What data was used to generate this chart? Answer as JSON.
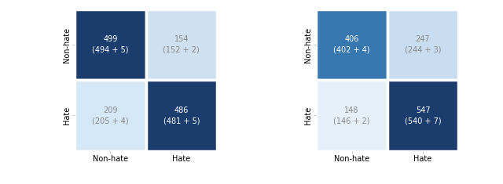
{
  "left_labels": [
    [
      "499\n(494 + 5)",
      "154\n(152 + 2)"
    ],
    [
      "209\n(205 + 4)",
      "486\n(481 + 5)"
    ]
  ],
  "right_labels": [
    [
      "406\n(402 + 4)",
      "247\n(244 + 3)"
    ],
    [
      "148\n(146 + 2)",
      "547\n(540 + 7)"
    ]
  ],
  "axis_labels": [
    "Non-hate",
    "Hate"
  ],
  "ylabel": [
    "Non-hate",
    "Hate"
  ],
  "left_colors": [
    [
      "#1b3d6e",
      "#cfe0f0"
    ],
    [
      "#d5e8f7",
      "#1b3d6e"
    ]
  ],
  "right_colors": [
    [
      "#3878b0",
      "#c8ddef"
    ],
    [
      "#e5f0f8",
      "#1b3d6e"
    ]
  ],
  "left_text_colors": [
    [
      "white",
      "#888888"
    ],
    [
      "#888888",
      "white"
    ]
  ],
  "right_text_colors": [
    [
      "white",
      "#888888"
    ],
    [
      "#888888",
      "white"
    ]
  ],
  "figsize": [
    6.4,
    2.35
  ],
  "dpi": 100,
  "fontsize_label": 7.0,
  "fontsize_tick": 7.0
}
